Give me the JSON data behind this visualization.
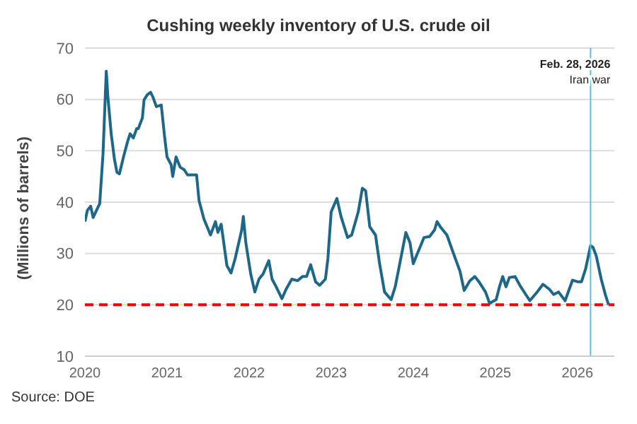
{
  "chart_data": {
    "type": "line",
    "title": "Cushing weekly inventory of U.S. crude oil",
    "ylabel": "(Millions of barrels)",
    "annotations": [
      "Source: DOE"
    ],
    "x": [
      2020.0,
      2020.03,
      2020.07,
      2020.1,
      2020.15,
      2020.18,
      2020.22,
      2020.26,
      2020.28,
      2020.32,
      2020.36,
      2020.39,
      2020.42,
      2020.47,
      2020.52,
      2020.55,
      2020.59,
      2020.63,
      2020.65,
      2020.7,
      2020.72,
      2020.76,
      2020.8,
      2020.83,
      2020.87,
      2020.93,
      2020.97,
      2021.0,
      2021.05,
      2021.07,
      2021.11,
      2021.16,
      2021.21,
      2021.25,
      2021.29,
      2021.36,
      2021.39,
      2021.45,
      2021.53,
      2021.59,
      2021.62,
      2021.66,
      2021.73,
      2021.78,
      2021.83,
      2021.91,
      2021.93,
      2021.96,
      2022.02,
      2022.07,
      2022.12,
      2022.17,
      2022.24,
      2022.28,
      2022.33,
      2022.4,
      2022.45,
      2022.52,
      2022.59,
      2022.65,
      2022.7,
      2022.75,
      2022.81,
      2022.86,
      2022.93,
      2022.96,
      2023.0,
      2023.07,
      2023.12,
      2023.2,
      2023.25,
      2023.33,
      2023.38,
      2023.42,
      2023.47,
      2023.54,
      2023.59,
      2023.65,
      2023.73,
      2023.78,
      2023.86,
      2023.91,
      2023.96,
      2024.0,
      2024.05,
      2024.09,
      2024.13,
      2024.2,
      2024.26,
      2024.29,
      2024.33,
      2024.41,
      2024.49,
      2024.57,
      2024.62,
      2024.69,
      2024.75,
      2024.8,
      2024.88,
      2024.93,
      2025.01,
      2025.05,
      2025.09,
      2025.13,
      2025.17,
      2025.24,
      2025.31,
      2025.42,
      2025.51,
      2025.58,
      2025.66,
      2025.71,
      2025.77,
      2025.85,
      2025.94,
      2026.0,
      2026.05,
      2026.1,
      2026.16,
      2026.19,
      2026.23,
      2026.29,
      2026.34,
      2026.38
    ],
    "series": [
      {
        "color": "#1d6788",
        "values": [
          36.2,
          38.4,
          39.2,
          37,
          38.7,
          39.7,
          49.3,
          65.5,
          60.4,
          53.3,
          48.3,
          45.8,
          45.5,
          48.8,
          51.8,
          53.3,
          52.5,
          54.3,
          54.3,
          56.4,
          59.9,
          60.9,
          61.4,
          60.4,
          58.6,
          58.9,
          52.8,
          48.8,
          47.3,
          45,
          48.8,
          46.8,
          46.3,
          45.3,
          45.3,
          45.3,
          40.3,
          36.7,
          33.6,
          36.2,
          34.1,
          35.7,
          27.6,
          26.2,
          29,
          34.6,
          37.2,
          32.1,
          26,
          22.5,
          25,
          26,
          28.6,
          25,
          23.5,
          21.2,
          23,
          25,
          24.7,
          25.5,
          25.5,
          27.8,
          24.5,
          23.8,
          25,
          29,
          38.1,
          40.7,
          37.2,
          33.1,
          33.6,
          38.1,
          42.7,
          42.2,
          35.2,
          33.6,
          28,
          22.5,
          21,
          23.5,
          30,
          34.1,
          32.1,
          28,
          30,
          31.5,
          33.1,
          33.3,
          34.6,
          36.2,
          35.2,
          33.6,
          30,
          26.5,
          22.8,
          24.7,
          25.5,
          24.5,
          22.5,
          20.3,
          21,
          23.5,
          25.5,
          23.5,
          25.3,
          25.5,
          23.5,
          20.8,
          22.5,
          24,
          23,
          22,
          22.5,
          20.8,
          24.8,
          24.5,
          24.5,
          27,
          31.5,
          31.2,
          29.5,
          25,
          22,
          20
        ]
      }
    ],
    "xlim": [
      2020,
      2026.45
    ],
    "xticks": [
      2020,
      2021,
      2022,
      2023,
      2024,
      2025,
      2026
    ],
    "ylim": [
      10,
      70
    ],
    "yticks": [
      10,
      20,
      30,
      40,
      50,
      60,
      70
    ],
    "grid": "y",
    "marker": "none",
    "line_style": "solid",
    "ref_lines": [
      {
        "axis": "y",
        "value": 20,
        "color": "#ff0000",
        "line_style": "dashed"
      },
      {
        "axis": "x",
        "value": 2026.16,
        "label": "Feb. 28, 2026\nIran war",
        "color": "#5bc0e0",
        "line_style": "solid"
      }
    ]
  }
}
